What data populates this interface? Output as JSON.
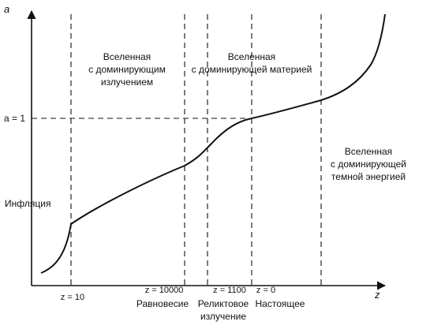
{
  "axes": {
    "y_label": "a",
    "x_label": "z",
    "a_equals_one": "a = 1"
  },
  "x_markers": {
    "z10": "z = 10",
    "z10000": "z = 10000",
    "z1100": "z = 1100",
    "z0": "z = 0"
  },
  "events": {
    "equality": "Равновесие",
    "relic_line1": "Реликтовое",
    "relic_line2": "излучение",
    "present": "Настоящее"
  },
  "eras": {
    "radiation": [
      "Вселенная",
      "с доминирующим",
      "излучением"
    ],
    "matter": [
      "Вселенная",
      "с доминирующей материей"
    ],
    "dark_energy": [
      "Вселенная",
      "с доминирующей",
      "темной энергией"
    ],
    "inflation": "Инфляция"
  },
  "style": {
    "line_color": "#111111",
    "background": "#ffffff"
  }
}
